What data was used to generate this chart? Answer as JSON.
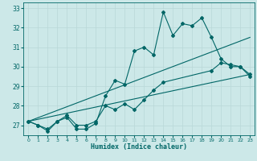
{
  "xlabel": "Humidex (Indice chaleur)",
  "bg_color": "#cce8e8",
  "grid_color": "#b8d8d8",
  "line_color": "#006666",
  "xlim": [
    -0.5,
    23.5
  ],
  "ylim": [
    26.5,
    33.3
  ],
  "yticks": [
    27,
    28,
    29,
    30,
    31,
    32,
    33
  ],
  "xticks": [
    0,
    1,
    2,
    3,
    4,
    5,
    6,
    7,
    8,
    9,
    10,
    11,
    12,
    13,
    14,
    15,
    16,
    17,
    18,
    19,
    20,
    21,
    22,
    23
  ],
  "line1_x": [
    0,
    1,
    2,
    3,
    4,
    5,
    6,
    7,
    8,
    9,
    10,
    11,
    12,
    13,
    14,
    15,
    16,
    17,
    18,
    19,
    20,
    21,
    22,
    23
  ],
  "line1_y": [
    27.2,
    27.0,
    26.7,
    27.2,
    27.4,
    26.8,
    26.8,
    27.1,
    28.5,
    29.3,
    29.1,
    30.8,
    31.0,
    30.6,
    32.8,
    31.6,
    32.2,
    32.1,
    32.5,
    31.5,
    30.4,
    30.0,
    30.0,
    29.6
  ],
  "line2_x": [
    0,
    23
  ],
  "line2_y": [
    27.2,
    31.5
  ],
  "line3_x": [
    0,
    23
  ],
  "line3_y": [
    27.2,
    29.6
  ],
  "line4_x": [
    0,
    1,
    2,
    3,
    4,
    5,
    6,
    7,
    8,
    9,
    10,
    11,
    12,
    13,
    14,
    19,
    20,
    21,
    22,
    23
  ],
  "line4_y": [
    27.2,
    27.0,
    26.8,
    27.2,
    27.5,
    27.0,
    27.0,
    27.2,
    28.0,
    27.8,
    28.1,
    27.8,
    28.3,
    28.8,
    29.2,
    29.8,
    30.2,
    30.1,
    30.0,
    29.5
  ]
}
